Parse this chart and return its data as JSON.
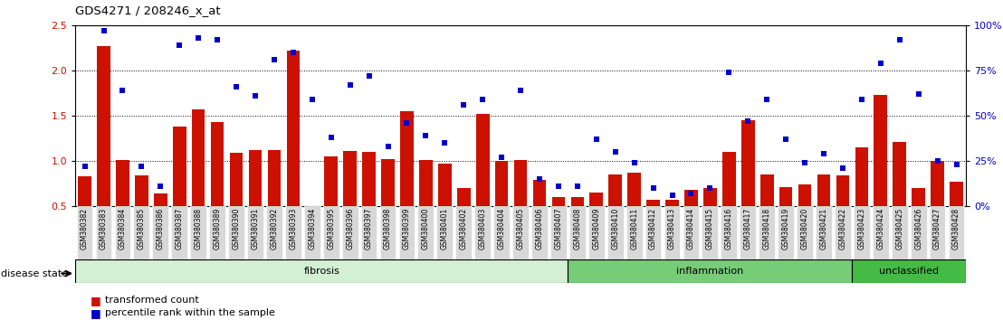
{
  "title": "GDS4271 / 208246_x_at",
  "samples": [
    "GSM380382",
    "GSM380383",
    "GSM380384",
    "GSM380385",
    "GSM380386",
    "GSM380387",
    "GSM380388",
    "GSM380389",
    "GSM380390",
    "GSM380391",
    "GSM380392",
    "GSM380393",
    "GSM380394",
    "GSM380395",
    "GSM380396",
    "GSM380397",
    "GSM380398",
    "GSM380399",
    "GSM380400",
    "GSM380401",
    "GSM380402",
    "GSM380403",
    "GSM380404",
    "GSM380405",
    "GSM380406",
    "GSM380407",
    "GSM380408",
    "GSM380409",
    "GSM380410",
    "GSM380411",
    "GSM380412",
    "GSM380413",
    "GSM380414",
    "GSM380415",
    "GSM380416",
    "GSM380417",
    "GSM380418",
    "GSM380419",
    "GSM380420",
    "GSM380421",
    "GSM380422",
    "GSM380423",
    "GSM380424",
    "GSM380425",
    "GSM380426",
    "GSM380427",
    "GSM380428"
  ],
  "bar_values": [
    0.83,
    2.27,
    1.01,
    0.84,
    0.64,
    1.38,
    1.57,
    1.43,
    1.09,
    1.12,
    1.12,
    2.22,
    0.49,
    1.05,
    1.11,
    1.1,
    1.02,
    1.55,
    1.01,
    0.97,
    0.7,
    1.52,
    1.0,
    1.01,
    0.79,
    0.6,
    0.6,
    0.65,
    0.85,
    0.87,
    0.57,
    0.57,
    0.68,
    0.7,
    1.1,
    1.45,
    0.85,
    0.71,
    0.74,
    0.85,
    0.84,
    1.15,
    1.73,
    1.21,
    0.7,
    1.0,
    0.77
  ],
  "scatter_pct": [
    22,
    97,
    64,
    22,
    11,
    89,
    93,
    92,
    66,
    61,
    81,
    85,
    59,
    38,
    67,
    72,
    33,
    46,
    39,
    35,
    56,
    59,
    27,
    64,
    15,
    11,
    11,
    37,
    30,
    24,
    10,
    6,
    7,
    10,
    74,
    47,
    59,
    37,
    24,
    29,
    21,
    59,
    79,
    92,
    62,
    25,
    23
  ],
  "groups": [
    {
      "label": "fibrosis",
      "start": 0,
      "end": 26,
      "color": "#d4f0d4"
    },
    {
      "label": "inflammation",
      "start": 26,
      "end": 41,
      "color": "#77cc77"
    },
    {
      "label": "unclassified",
      "start": 41,
      "end": 47,
      "color": "#44bb44"
    }
  ],
  "ylim_left": [
    0.5,
    2.5
  ],
  "yticks_left": [
    0.5,
    1.0,
    1.5,
    2.0,
    2.5
  ],
  "yticks_right_vals": [
    0,
    25,
    50,
    75,
    100
  ],
  "yticks_right_labels": [
    "0%",
    "25%",
    "50%",
    "75%",
    "100%"
  ],
  "bar_color": "#cc1100",
  "scatter_color": "#0000cc",
  "grid_values": [
    1.0,
    1.5,
    2.0
  ],
  "legend_items": [
    "transformed count",
    "percentile rank within the sample"
  ],
  "disease_state_label": "disease state"
}
